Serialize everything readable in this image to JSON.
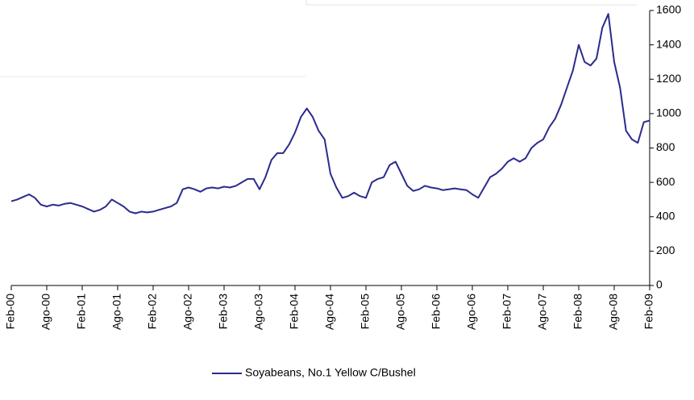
{
  "chart_data": {
    "type": "line",
    "categories": [
      "Feb-00",
      null,
      null,
      null,
      null,
      null,
      "Ago-00",
      null,
      null,
      null,
      null,
      null,
      "Feb-01",
      null,
      null,
      null,
      null,
      null,
      "Ago-01",
      null,
      null,
      null,
      null,
      null,
      "Feb-02",
      null,
      null,
      null,
      null,
      null,
      "Ago-02",
      null,
      null,
      null,
      null,
      null,
      "Feb-03",
      null,
      null,
      null,
      null,
      null,
      "Ago-03",
      null,
      null,
      null,
      null,
      null,
      "Feb-04",
      null,
      null,
      null,
      null,
      null,
      "Ago-04",
      null,
      null,
      null,
      null,
      null,
      "Feb-05",
      null,
      null,
      null,
      null,
      null,
      "Ago-05",
      null,
      null,
      null,
      null,
      null,
      "Feb-06",
      null,
      null,
      null,
      null,
      null,
      "Ago-06",
      null,
      null,
      null,
      null,
      null,
      "Feb-07",
      null,
      null,
      null,
      null,
      null,
      "Ago-07",
      null,
      null,
      null,
      null,
      null,
      "Feb-08",
      null,
      null,
      null,
      null,
      null,
      "Ago-08",
      null,
      null,
      null,
      null,
      null,
      "Feb-09"
    ],
    "series": [
      {
        "name": "Soyabeans, No.1 Yellow C/Bushel",
        "color": "#2b2b8c",
        "values": [
          490,
          500,
          515,
          530,
          510,
          470,
          460,
          470,
          465,
          475,
          480,
          470,
          460,
          445,
          430,
          440,
          460,
          500,
          480,
          460,
          430,
          420,
          430,
          425,
          430,
          440,
          450,
          460,
          480,
          560,
          570,
          560,
          545,
          565,
          570,
          565,
          575,
          570,
          580,
          600,
          620,
          620,
          560,
          630,
          730,
          770,
          770,
          820,
          890,
          980,
          1030,
          980,
          900,
          850,
          650,
          570,
          510,
          520,
          540,
          520,
          510,
          600,
          620,
          630,
          700,
          720,
          650,
          580,
          550,
          560,
          580,
          570,
          565,
          555,
          560,
          565,
          560,
          555,
          530,
          510,
          570,
          630,
          650,
          680,
          720,
          740,
          720,
          740,
          800,
          830,
          850,
          920,
          970,
          1050,
          1150,
          1250,
          1400,
          1300,
          1280,
          1320,
          1500,
          1580,
          1300,
          1150,
          900,
          850,
          830,
          950,
          960
        ]
      }
    ],
    "ylim": [
      0,
      1600
    ],
    "yticks": [
      0,
      200,
      400,
      600,
      800,
      1000,
      1200,
      1400,
      1600
    ],
    "legend": "bottom"
  }
}
